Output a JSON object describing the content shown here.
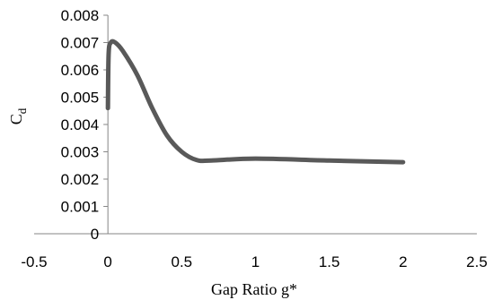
{
  "chart_data": {
    "type": "line",
    "title": "",
    "xlabel": "Gap Ratio g*",
    "ylabel_main": "C",
    "ylabel_sub": "d",
    "xlim": [
      -0.5,
      2.5
    ],
    "ylim": [
      0,
      0.008
    ],
    "xticks": [
      -0.5,
      0,
      0.5,
      1,
      1.5,
      2,
      2.5
    ],
    "yticks": [
      0,
      0.001,
      0.002,
      0.003,
      0.004,
      0.005,
      0.006,
      0.007,
      0.008
    ],
    "xtick_labels": [
      "-0.5",
      "0",
      "0.5",
      "1",
      "1.5",
      "2",
      "2.5"
    ],
    "ytick_labels": [
      "0",
      "0.001",
      "0.002",
      "0.003",
      "0.004",
      "0.005",
      "0.006",
      "0.007",
      "0.008"
    ],
    "series": [
      {
        "color": "#595959",
        "x": [
          0,
          0.005,
          0.02,
          0.05,
          0.1,
          0.2,
          0.3,
          0.4,
          0.5,
          0.6,
          0.7,
          1.0,
          1.5,
          2.0
        ],
        "y": [
          0.0046,
          0.0066,
          0.007,
          0.007,
          0.0067,
          0.0058,
          0.0046,
          0.0036,
          0.003,
          0.0027,
          0.00268,
          0.00275,
          0.00268,
          0.00262
        ]
      }
    ],
    "grid": false,
    "legend": "none"
  }
}
